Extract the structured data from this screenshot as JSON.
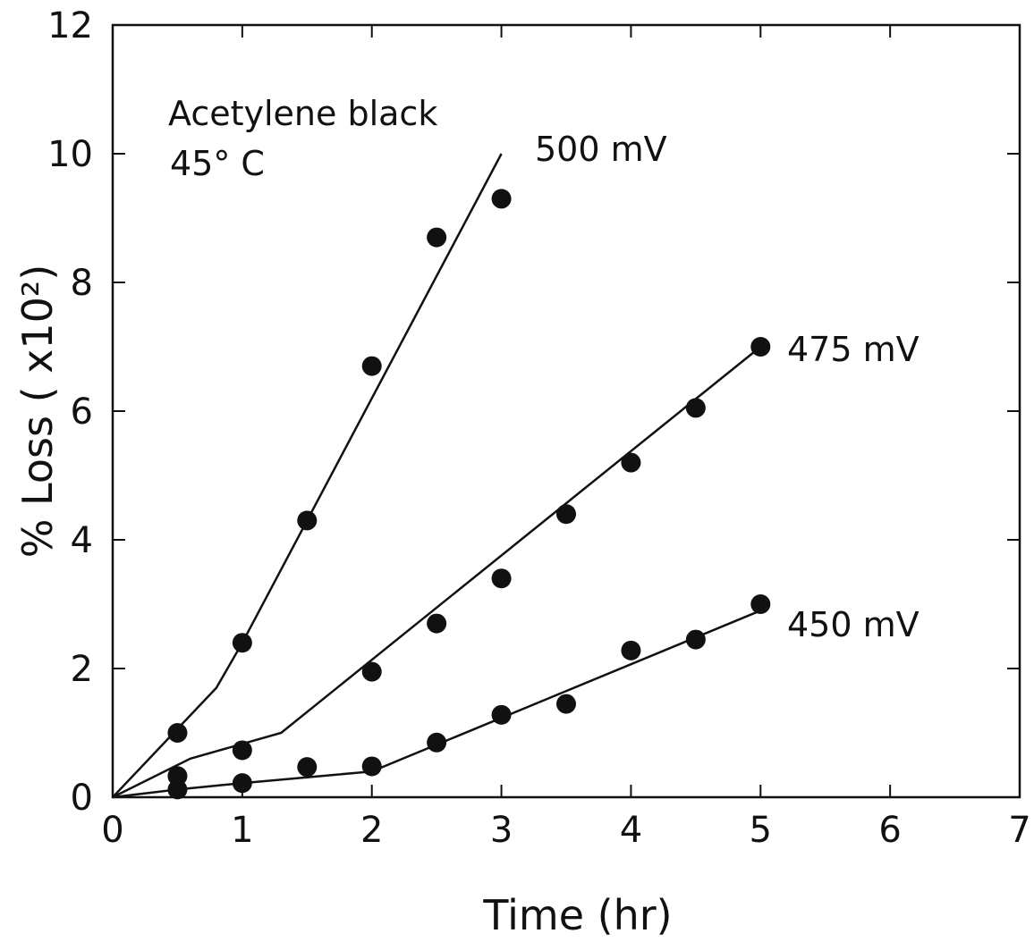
{
  "chart_data": {
    "type": "scatter",
    "xlabel": "Time (hr)",
    "ylabel": "% Loss ( x10²)",
    "xlim": [
      0,
      7
    ],
    "ylim": [
      0,
      12
    ],
    "xticks": [
      "0",
      "1",
      "2",
      "3",
      "4",
      "5",
      "6",
      "7"
    ],
    "yticks": [
      "0",
      "2",
      "4",
      "6",
      "8",
      "10",
      "12"
    ],
    "grid": false,
    "annotation": [
      "Acetylene black",
      "45° C"
    ],
    "series": [
      {
        "name": "500 mV",
        "points": [
          [
            0.5,
            1.0
          ],
          [
            1.0,
            2.4
          ],
          [
            1.5,
            4.3
          ],
          [
            2.0,
            6.7
          ],
          [
            2.5,
            8.7
          ],
          [
            3.0,
            9.3
          ]
        ],
        "line": [
          [
            0,
            0
          ],
          [
            0.8,
            1.7
          ],
          [
            1.0,
            2.4
          ],
          [
            1.5,
            4.3
          ],
          [
            3.0,
            10.0
          ]
        ]
      },
      {
        "name": "475 mV",
        "points": [
          [
            0.5,
            0.33
          ],
          [
            1.0,
            0.73
          ],
          [
            2.0,
            1.95
          ],
          [
            2.5,
            2.7
          ],
          [
            3.0,
            3.4
          ],
          [
            3.5,
            4.4
          ],
          [
            4.0,
            5.2
          ],
          [
            4.5,
            6.05
          ],
          [
            5.0,
            7.0
          ]
        ],
        "line": [
          [
            0,
            0
          ],
          [
            0.6,
            0.6
          ],
          [
            1.3,
            1.0
          ],
          [
            5.0,
            7.0
          ]
        ]
      },
      {
        "name": "450 mV",
        "points": [
          [
            0.5,
            0.12
          ],
          [
            1.0,
            0.22
          ],
          [
            1.5,
            0.47
          ],
          [
            2.0,
            0.48
          ],
          [
            2.5,
            0.85
          ],
          [
            3.0,
            1.28
          ],
          [
            3.5,
            1.45
          ],
          [
            4.0,
            2.28
          ],
          [
            4.5,
            2.45
          ],
          [
            5.0,
            3.0
          ]
        ],
        "line": [
          [
            0,
            0
          ],
          [
            0.5,
            0.12
          ],
          [
            1.0,
            0.22
          ],
          [
            2.0,
            0.4
          ],
          [
            5.0,
            2.9
          ]
        ]
      }
    ]
  }
}
